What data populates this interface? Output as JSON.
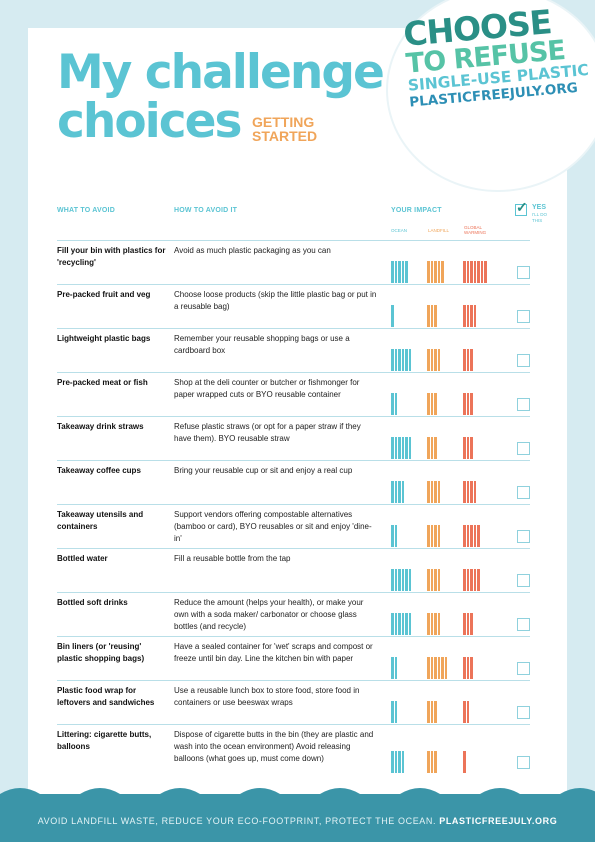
{
  "title": {
    "line1": "My challenge",
    "line2": "choices"
  },
  "getting_started": {
    "line1": "GETTING",
    "line2": "STARTED"
  },
  "logo": {
    "line1": "CHOOSE",
    "line2": "TO REFUSE",
    "line3": "SINGLE-USE PLASTIC",
    "line4": "PLASTICFREEJULY.ORG"
  },
  "headers": {
    "what": "WHAT TO AVOID",
    "how": "HOW TO AVOID IT",
    "impact": "YOUR IMPACT",
    "ocean": "OCEAN",
    "landfill": "LANDFILL",
    "global1": "GLOBAL",
    "global2": "WARMING",
    "yes": "YES",
    "yes_sub": "I'LL DO THIS"
  },
  "colors": {
    "ocean": "#5bc4d3",
    "landfill": "#f0a55a",
    "warming": "#ec7459"
  },
  "rows": [
    {
      "avoid": "Fill your bin with plastics for 'recycling'",
      "how": "Avoid as much plastic packaging as you can",
      "ocean": 5,
      "landfill": 5,
      "warming": 7
    },
    {
      "avoid": "Pre-packed fruit and veg",
      "how": "Choose loose products (skip the little plastic bag or put in a reusable bag)",
      "ocean": 1,
      "landfill": 3,
      "warming": 4
    },
    {
      "avoid": "Lightweight plastic bags",
      "how": "Remember your reusable shopping bags or use a cardboard box",
      "ocean": 6,
      "landfill": 4,
      "warming": 3
    },
    {
      "avoid": "Pre-packed meat or fish",
      "how": "Shop at the deli counter or butcher or fishmonger for paper wrapped cuts or BYO reusable container",
      "ocean": 2,
      "landfill": 3,
      "warming": 3
    },
    {
      "avoid": "Takeaway drink straws",
      "how": "Refuse plastic straws (or opt for a paper straw if they have them). BYO reusable straw",
      "ocean": 6,
      "landfill": 3,
      "warming": 3
    },
    {
      "avoid": "Takeaway coffee cups",
      "how": "Bring your reusable cup or sit and enjoy a real cup",
      "ocean": 4,
      "landfill": 4,
      "warming": 4
    },
    {
      "avoid": "Takeaway utensils and containers",
      "how": "Support vendors offering compostable alternatives (bamboo or card), BYO reusables or sit and enjoy 'dine-in'",
      "ocean": 2,
      "landfill": 4,
      "warming": 5
    },
    {
      "avoid": "Bottled water",
      "how": "Fill a reusable bottle from the tap",
      "ocean": 6,
      "landfill": 4,
      "warming": 5
    },
    {
      "avoid": "Bottled soft drinks",
      "how": "Reduce the amount (helps your health), or make your own with a soda maker/ carbonator or choose glass bottles (and recycle)",
      "ocean": 6,
      "landfill": 4,
      "warming": 3
    },
    {
      "avoid": "Bin liners (or 'reusing' plastic shopping bags)",
      "how": "Have a sealed container for 'wet' scraps and compost or freeze until bin day. Line the kitchen bin with paper",
      "ocean": 2,
      "landfill": 6,
      "warming": 3
    },
    {
      "avoid": "Plastic food wrap for leftovers and sandwiches",
      "how": "Use a reusable lunch box to store food, store food in containers or use beeswax wraps",
      "ocean": 2,
      "landfill": 3,
      "warming": 2
    },
    {
      "avoid": "Littering: cigarette butts, balloons",
      "how": "Dispose of cigarette butts in the bin (they are plastic and wash into the ocean environment) Avoid releasing balloons (what goes up, must come down)",
      "ocean": 4,
      "landfill": 3,
      "warming": 1
    }
  ],
  "footer": {
    "text": "AVOID LANDFILL WASTE, REDUCE YOUR ECO-FOOTPRINT, PROTECT THE OCEAN.",
    "link": "PLASTICFREEJULY.ORG"
  }
}
